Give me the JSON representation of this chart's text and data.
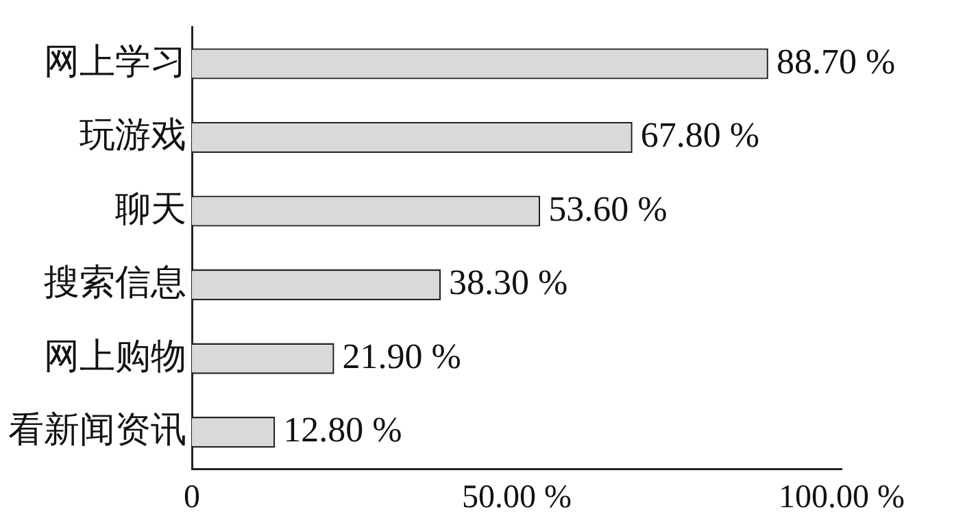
{
  "chart_data": {
    "type": "bar",
    "orientation": "horizontal",
    "categories": [
      "网上学习",
      "玩游戏",
      "聊天",
      "搜索信息",
      "网上购物",
      "看新闻资讯"
    ],
    "values": [
      88.7,
      67.8,
      53.6,
      38.3,
      21.9,
      12.8
    ],
    "value_labels": [
      "88.70 %",
      "67.80 %",
      "53.60 %",
      "38.30 %",
      "21.90 %",
      "12.80 %"
    ],
    "color": "#d9d9d9",
    "xlim": [
      0,
      100
    ],
    "xticks": [
      0,
      {
        "value": 50,
        "label": "50.00 %"
      },
      {
        "value": 100,
        "label": "100.00 %"
      }
    ],
    "grid": false,
    "legend": false
  }
}
